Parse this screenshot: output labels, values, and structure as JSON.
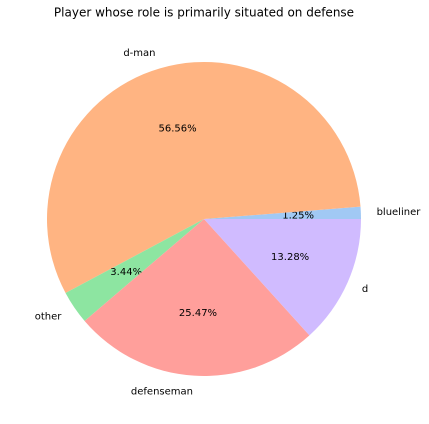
{
  "chart_data": {
    "type": "pie",
    "title": "Player whose role is primarily situated on defense",
    "categories": [
      "blueliner",
      "d-man",
      "other",
      "defenseman",
      "d"
    ],
    "values": [
      1.25,
      56.56,
      3.44,
      25.47,
      13.28
    ],
    "value_labels": [
      "1.25%",
      "56.56%",
      "3.44%",
      "25.47%",
      "13.28%"
    ],
    "colors": [
      "#a1c9f4",
      "#ffb482",
      "#8de5a1",
      "#ff9f9b",
      "#d0bbff"
    ]
  }
}
